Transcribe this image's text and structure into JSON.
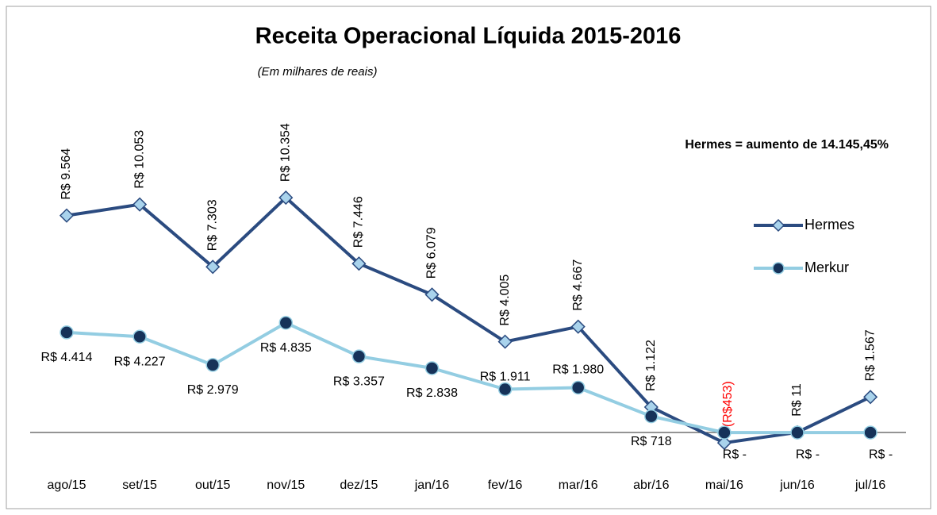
{
  "chart_data": {
    "type": "line",
    "title": "Receita Operacional Líquida 2015-2016",
    "subtitle": "(Em milhares de reais)",
    "annotation": "Hermes = aumento de 14.145,45%",
    "categories": [
      "ago/15",
      "set/15",
      "out/15",
      "nov/15",
      "dez/15",
      "jan/16",
      "fev/16",
      "mar/16",
      "abr/16",
      "mai/16",
      "jun/16",
      "jul/16"
    ],
    "ylim": [
      -1500,
      12000
    ],
    "negative_label_color": "#ff0000",
    "series": [
      {
        "name": "Hermes",
        "color": "#2b4b80",
        "marker_color": "#a9d3ec",
        "values": [
          9564,
          10053,
          7303,
          10354,
          7446,
          6079,
          4005,
          4667,
          1122,
          -453,
          11,
          1567
        ],
        "value_labels": [
          "R$ 9.564",
          "R$ 10.053",
          "R$ 7.303",
          "R$ 10.354",
          "R$ 7.446",
          "R$ 6.079",
          "R$ 4.005",
          "R$ 4.667",
          "R$ 1.122",
          "(R$453)",
          "R$ 11",
          "R$ 1.567"
        ]
      },
      {
        "name": "Merkur",
        "color": "#93cde2",
        "marker_color": "#163259",
        "values": [
          4414,
          4227,
          2979,
          4835,
          3357,
          2838,
          1911,
          1980,
          718,
          0,
          0,
          0
        ],
        "value_labels": [
          "R$ 4.414",
          "R$ 4.227",
          "R$ 2.979",
          "R$ 4.835",
          "R$ 3.357",
          "R$ 2.838",
          "R$ 1.911",
          "R$ 1.980",
          "R$ 718",
          "R$ -",
          "R$ -",
          "R$ -"
        ]
      }
    ]
  }
}
